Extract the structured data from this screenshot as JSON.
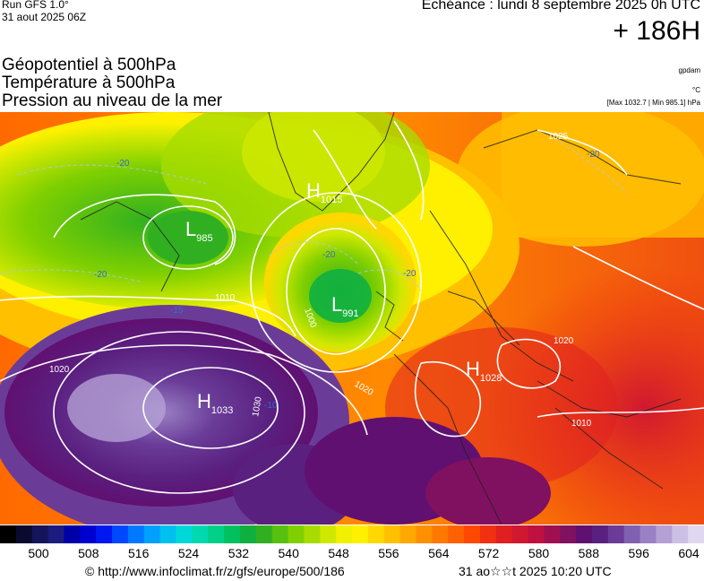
{
  "header": {
    "run_label": "Run GFS 1.0°",
    "run_date": "31 aout 2025 06Z",
    "valid_time": "Echéance : lundi 8 septembre 2025 0h UTC",
    "lead_time": "+ 186H",
    "field_lines": [
      "Géopotentiel à 500hPa",
      "Température à 500hPa",
      "Pression au niveau de la mer"
    ],
    "unit_geopotential": "gpdam",
    "unit_temperature": "°C",
    "pressure_range": "[Max 1032.7 | Min 985.1] hPa"
  },
  "map": {
    "pressure_centers": [
      {
        "type": "L",
        "value": "985"
      },
      {
        "type": "L",
        "value": "991"
      },
      {
        "type": "H",
        "value": "1033"
      },
      {
        "type": "H",
        "value": "1028"
      },
      {
        "type": "H",
        "value": "1015"
      }
    ],
    "isobar_labels": [
      "1010",
      "1020",
      "1030",
      "1000",
      "1025",
      "1010",
      "1020",
      "1020"
    ],
    "temperature_labels": [
      "-20",
      "-20",
      "-20",
      "-20",
      "-15",
      "-10",
      "-20"
    ]
  },
  "colorbar": {
    "ticks": [
      "500",
      "508",
      "516",
      "524",
      "532",
      "540",
      "548",
      "556",
      "564",
      "572",
      "580",
      "588",
      "596",
      "604"
    ],
    "colors": [
      "#000000",
      "#0a0a30",
      "#14145a",
      "#1c1c80",
      "#0000a8",
      "#0000d0",
      "#0018f0",
      "#0048ff",
      "#0078ff",
      "#00a0ff",
      "#00c0f0",
      "#00d8d8",
      "#00d8b0",
      "#00d088",
      "#00c060",
      "#10b040",
      "#30b020",
      "#58c010",
      "#80d000",
      "#a8dc00",
      "#d0e800",
      "#f0f000",
      "#fff000",
      "#ffd800",
      "#ffc000",
      "#ffa800",
      "#ff9000",
      "#ff7800",
      "#ff6000",
      "#ff4800",
      "#f03010",
      "#e02020",
      "#d01830",
      "#c01040",
      "#a01050",
      "#801060",
      "#601070",
      "#5a2080",
      "#6a3c98",
      "#8060b0",
      "#9a80c4",
      "#b4a0d4",
      "#ccc0e4",
      "#e0d8f0"
    ],
    "series": "Géopotentiel à 500hPa (gpdam)"
  },
  "footer": {
    "source": "© http://www.infoclimat.fr/z/gfs/europe/500/186",
    "generated": "31 ao☆☆t 2025 10:20 UTC"
  }
}
